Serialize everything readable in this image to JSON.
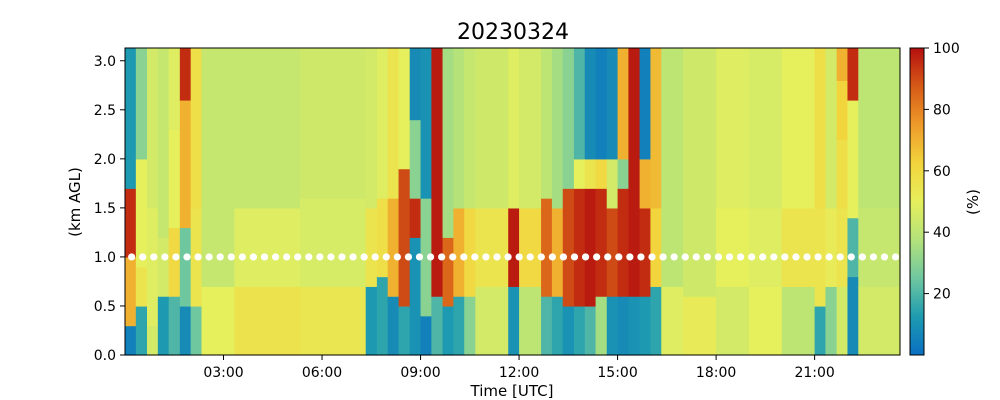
{
  "chart_data": {
    "type": "heatmap",
    "title": "20230324",
    "xlabel": "Time [UTC]",
    "ylabel": "(km AGL)",
    "xlim": [
      0.0,
      23.6
    ],
    "ylim": [
      0.0,
      3.13
    ],
    "xticks": [
      {
        "value": 3,
        "label": "03:00"
      },
      {
        "value": 6,
        "label": "06:00"
      },
      {
        "value": 9,
        "label": "09:00"
      },
      {
        "value": 12,
        "label": "12:00"
      },
      {
        "value": 15,
        "label": "15:00"
      },
      {
        "value": 18,
        "label": "18:00"
      },
      {
        "value": 21,
        "label": "21:00"
      }
    ],
    "yticks": [
      {
        "value": 0.0,
        "label": "0.0"
      },
      {
        "value": 0.5,
        "label": "0.5"
      },
      {
        "value": 1.0,
        "label": "1.0"
      },
      {
        "value": 1.5,
        "label": "1.5"
      },
      {
        "value": 2.0,
        "label": "2.0"
      },
      {
        "value": 2.5,
        "label": "2.5"
      },
      {
        "value": 3.0,
        "label": "3.0"
      }
    ],
    "colorbar": {
      "label": "(%)",
      "range": [
        0,
        100
      ],
      "ticks": [
        {
          "value": 20,
          "label": "20"
        },
        {
          "value": 40,
          "label": "40"
        },
        {
          "value": 60,
          "label": "60"
        },
        {
          "value": 80,
          "label": "80"
        },
        {
          "value": 100,
          "label": "100"
        }
      ],
      "colors": [
        "#0a6fc2",
        "#1e9bb0",
        "#6fc7a0",
        "#b3e27a",
        "#e6ef5c",
        "#f2d43c",
        "#ee9a2a",
        "#d65a17",
        "#b50f0f"
      ]
    },
    "marker_line": {
      "y": 1.0,
      "color": "#ffffff"
    },
    "grid": false,
    "columns": [
      {
        "x0": 0.0,
        "x1": 0.33,
        "segments": [
          [
            0.0,
            0.3,
            5
          ],
          [
            0.3,
            1.0,
            70
          ],
          [
            1.0,
            1.7,
            95
          ],
          [
            1.7,
            3.13,
            12
          ]
        ]
      },
      {
        "x0": 0.33,
        "x1": 0.67,
        "segments": [
          [
            0.0,
            0.5,
            15
          ],
          [
            0.5,
            0.9,
            55
          ],
          [
            0.9,
            2.0,
            50
          ],
          [
            2.0,
            3.13,
            30
          ]
        ]
      },
      {
        "x0": 0.67,
        "x1": 1.0,
        "segments": [
          [
            0.0,
            0.3,
            45
          ],
          [
            0.3,
            1.5,
            48
          ],
          [
            1.5,
            3.13,
            45
          ]
        ]
      },
      {
        "x0": 1.0,
        "x1": 1.33,
        "segments": [
          [
            0.0,
            0.6,
            12
          ],
          [
            0.6,
            1.2,
            45
          ],
          [
            1.2,
            3.13,
            42
          ]
        ]
      },
      {
        "x0": 1.33,
        "x1": 1.67,
        "segments": [
          [
            0.0,
            0.6,
            20
          ],
          [
            0.6,
            1.3,
            60
          ],
          [
            1.3,
            2.3,
            50
          ],
          [
            2.3,
            3.13,
            48
          ]
        ]
      },
      {
        "x0": 1.67,
        "x1": 2.0,
        "segments": [
          [
            0.0,
            0.5,
            8
          ],
          [
            0.5,
            1.3,
            25
          ],
          [
            1.3,
            2.6,
            70
          ],
          [
            2.6,
            3.13,
            95
          ]
        ]
      },
      {
        "x0": 2.0,
        "x1": 2.33,
        "segments": [
          [
            0.0,
            0.5,
            25
          ],
          [
            0.5,
            1.5,
            55
          ],
          [
            1.5,
            3.13,
            58
          ]
        ]
      },
      {
        "x0": 2.33,
        "x1": 3.33,
        "segments": [
          [
            0.0,
            0.7,
            50
          ],
          [
            0.7,
            3.13,
            42
          ]
        ]
      },
      {
        "x0": 3.33,
        "x1": 5.33,
        "segments": [
          [
            0.0,
            0.7,
            56
          ],
          [
            0.7,
            1.5,
            48
          ],
          [
            1.5,
            3.13,
            42
          ]
        ]
      },
      {
        "x0": 5.33,
        "x1": 7.33,
        "segments": [
          [
            0.0,
            0.7,
            54
          ],
          [
            0.7,
            1.6,
            46
          ],
          [
            1.6,
            3.13,
            44
          ]
        ]
      },
      {
        "x0": 7.33,
        "x1": 7.67,
        "segments": [
          [
            0.0,
            0.7,
            12
          ],
          [
            0.7,
            1.5,
            55
          ],
          [
            1.5,
            3.13,
            45
          ]
        ]
      },
      {
        "x0": 7.67,
        "x1": 8.0,
        "segments": [
          [
            0.0,
            0.8,
            15
          ],
          [
            0.8,
            1.6,
            58
          ],
          [
            1.6,
            3.13,
            48
          ]
        ]
      },
      {
        "x0": 8.0,
        "x1": 8.33,
        "segments": [
          [
            0.0,
            0.6,
            8
          ],
          [
            0.6,
            1.6,
            70
          ],
          [
            1.6,
            3.13,
            55
          ]
        ]
      },
      {
        "x0": 8.33,
        "x1": 8.67,
        "segments": [
          [
            0.0,
            0.5,
            15
          ],
          [
            0.5,
            1.9,
            90
          ],
          [
            1.9,
            3.13,
            50
          ]
        ]
      },
      {
        "x0": 8.67,
        "x1": 9.0,
        "segments": [
          [
            0.0,
            1.2,
            10
          ],
          [
            1.2,
            1.6,
            95
          ],
          [
            1.6,
            2.4,
            30
          ],
          [
            2.4,
            3.13,
            8
          ]
        ]
      },
      {
        "x0": 9.0,
        "x1": 9.33,
        "segments": [
          [
            0.0,
            0.4,
            5
          ],
          [
            0.4,
            1.6,
            30
          ],
          [
            1.6,
            3.13,
            10
          ]
        ]
      },
      {
        "x0": 9.33,
        "x1": 9.67,
        "segments": [
          [
            0.0,
            0.6,
            20
          ],
          [
            0.6,
            1.5,
            98
          ],
          [
            1.5,
            3.13,
            98
          ]
        ]
      },
      {
        "x0": 9.67,
        "x1": 10.0,
        "segments": [
          [
            0.0,
            0.5,
            12
          ],
          [
            0.5,
            1.2,
            85
          ],
          [
            1.2,
            3.13,
            35
          ]
        ]
      },
      {
        "x0": 10.0,
        "x1": 10.33,
        "segments": [
          [
            0.0,
            0.6,
            15
          ],
          [
            0.6,
            1.5,
            70
          ],
          [
            1.5,
            3.13,
            38
          ]
        ]
      },
      {
        "x0": 10.33,
        "x1": 10.67,
        "segments": [
          [
            0.0,
            0.6,
            30
          ],
          [
            0.6,
            1.5,
            60
          ],
          [
            1.5,
            3.13,
            42
          ]
        ]
      },
      {
        "x0": 10.67,
        "x1": 11.67,
        "segments": [
          [
            0.0,
            0.7,
            45
          ],
          [
            0.7,
            1.5,
            55
          ],
          [
            1.5,
            3.13,
            44
          ]
        ]
      },
      {
        "x0": 11.67,
        "x1": 12.0,
        "segments": [
          [
            0.0,
            0.7,
            10
          ],
          [
            0.7,
            1.5,
            98
          ],
          [
            1.5,
            3.13,
            48
          ]
        ]
      },
      {
        "x0": 12.0,
        "x1": 12.67,
        "segments": [
          [
            0.0,
            0.7,
            40
          ],
          [
            0.7,
            1.5,
            60
          ],
          [
            1.5,
            3.13,
            45
          ]
        ]
      },
      {
        "x0": 12.67,
        "x1": 13.0,
        "segments": [
          [
            0.0,
            0.6,
            20
          ],
          [
            0.6,
            1.6,
            85
          ],
          [
            1.6,
            3.13,
            40
          ]
        ]
      },
      {
        "x0": 13.0,
        "x1": 13.33,
        "segments": [
          [
            0.0,
            0.6,
            15
          ],
          [
            0.6,
            1.5,
            70
          ],
          [
            1.5,
            3.13,
            35
          ]
        ]
      },
      {
        "x0": 13.33,
        "x1": 13.67,
        "segments": [
          [
            0.0,
            0.5,
            10
          ],
          [
            0.5,
            1.7,
            90
          ],
          [
            1.7,
            3.13,
            30
          ]
        ]
      },
      {
        "x0": 13.67,
        "x1": 14.0,
        "segments": [
          [
            0.0,
            0.5,
            15
          ],
          [
            0.5,
            1.7,
            95
          ],
          [
            1.7,
            2.0,
            50
          ],
          [
            2.0,
            3.13,
            20
          ]
        ]
      },
      {
        "x0": 14.0,
        "x1": 14.33,
        "segments": [
          [
            0.0,
            0.5,
            20
          ],
          [
            0.5,
            1.7,
            98
          ],
          [
            1.7,
            2.0,
            55
          ],
          [
            2.0,
            3.13,
            8
          ]
        ]
      },
      {
        "x0": 14.33,
        "x1": 14.67,
        "segments": [
          [
            0.0,
            0.6,
            35
          ],
          [
            0.6,
            1.7,
            95
          ],
          [
            1.7,
            2.0,
            60
          ],
          [
            2.0,
            3.13,
            5
          ]
        ]
      },
      {
        "x0": 14.67,
        "x1": 15.0,
        "segments": [
          [
            0.0,
            0.6,
            10
          ],
          [
            0.6,
            1.5,
            90
          ],
          [
            1.5,
            2.0,
            45
          ],
          [
            2.0,
            3.13,
            8
          ]
        ]
      },
      {
        "x0": 15.0,
        "x1": 15.33,
        "segments": [
          [
            0.0,
            0.6,
            8
          ],
          [
            0.6,
            1.7,
            95
          ],
          [
            1.7,
            2.0,
            30
          ],
          [
            2.0,
            3.13,
            70
          ]
        ]
      },
      {
        "x0": 15.33,
        "x1": 15.67,
        "segments": [
          [
            0.0,
            0.6,
            10
          ],
          [
            0.6,
            1.9,
            98
          ],
          [
            1.9,
            3.13,
            98
          ]
        ]
      },
      {
        "x0": 15.67,
        "x1": 16.0,
        "segments": [
          [
            0.0,
            0.6,
            12
          ],
          [
            0.6,
            1.5,
            95
          ],
          [
            1.5,
            2.0,
            70
          ],
          [
            2.0,
            3.13,
            5
          ]
        ]
      },
      {
        "x0": 16.0,
        "x1": 16.33,
        "segments": [
          [
            0.0,
            0.7,
            15
          ],
          [
            0.7,
            1.5,
            62
          ],
          [
            1.5,
            3.13,
            68
          ]
        ]
      },
      {
        "x0": 16.33,
        "x1": 17.0,
        "segments": [
          [
            0.0,
            0.7,
            48
          ],
          [
            0.7,
            3.13,
            40
          ]
        ]
      },
      {
        "x0": 17.0,
        "x1": 18.0,
        "segments": [
          [
            0.0,
            0.6,
            52
          ],
          [
            0.6,
            3.13,
            44
          ]
        ]
      },
      {
        "x0": 18.0,
        "x1": 19.0,
        "segments": [
          [
            0.0,
            0.7,
            45
          ],
          [
            0.7,
            1.5,
            50
          ],
          [
            1.5,
            3.13,
            48
          ]
        ]
      },
      {
        "x0": 19.0,
        "x1": 20.0,
        "segments": [
          [
            0.0,
            0.7,
            50
          ],
          [
            0.7,
            1.5,
            48
          ],
          [
            1.5,
            3.13,
            46
          ]
        ]
      },
      {
        "x0": 20.0,
        "x1": 21.0,
        "segments": [
          [
            0.0,
            0.7,
            40
          ],
          [
            0.7,
            1.5,
            55
          ],
          [
            1.5,
            3.13,
            50
          ]
        ]
      },
      {
        "x0": 21.0,
        "x1": 21.33,
        "segments": [
          [
            0.0,
            0.5,
            15
          ],
          [
            0.5,
            1.5,
            55
          ],
          [
            1.5,
            3.13,
            58
          ]
        ]
      },
      {
        "x0": 21.33,
        "x1": 21.67,
        "segments": [
          [
            0.0,
            0.7,
            30
          ],
          [
            0.7,
            1.5,
            52
          ],
          [
            1.5,
            3.13,
            45
          ]
        ]
      },
      {
        "x0": 21.67,
        "x1": 22.0,
        "segments": [
          [
            0.0,
            0.7,
            45
          ],
          [
            0.7,
            1.5,
            55
          ],
          [
            1.5,
            2.2,
            58
          ],
          [
            2.2,
            2.8,
            62
          ],
          [
            2.8,
            3.13,
            70
          ]
        ]
      },
      {
        "x0": 22.0,
        "x1": 22.33,
        "segments": [
          [
            0.0,
            0.8,
            8
          ],
          [
            0.8,
            1.4,
            20
          ],
          [
            1.4,
            2.6,
            50
          ],
          [
            2.6,
            3.13,
            95
          ]
        ]
      },
      {
        "x0": 22.33,
        "x1": 23.6,
        "segments": [
          [
            0.0,
            0.7,
            45
          ],
          [
            0.7,
            1.5,
            42
          ],
          [
            1.5,
            3.13,
            40
          ]
        ]
      }
    ]
  }
}
